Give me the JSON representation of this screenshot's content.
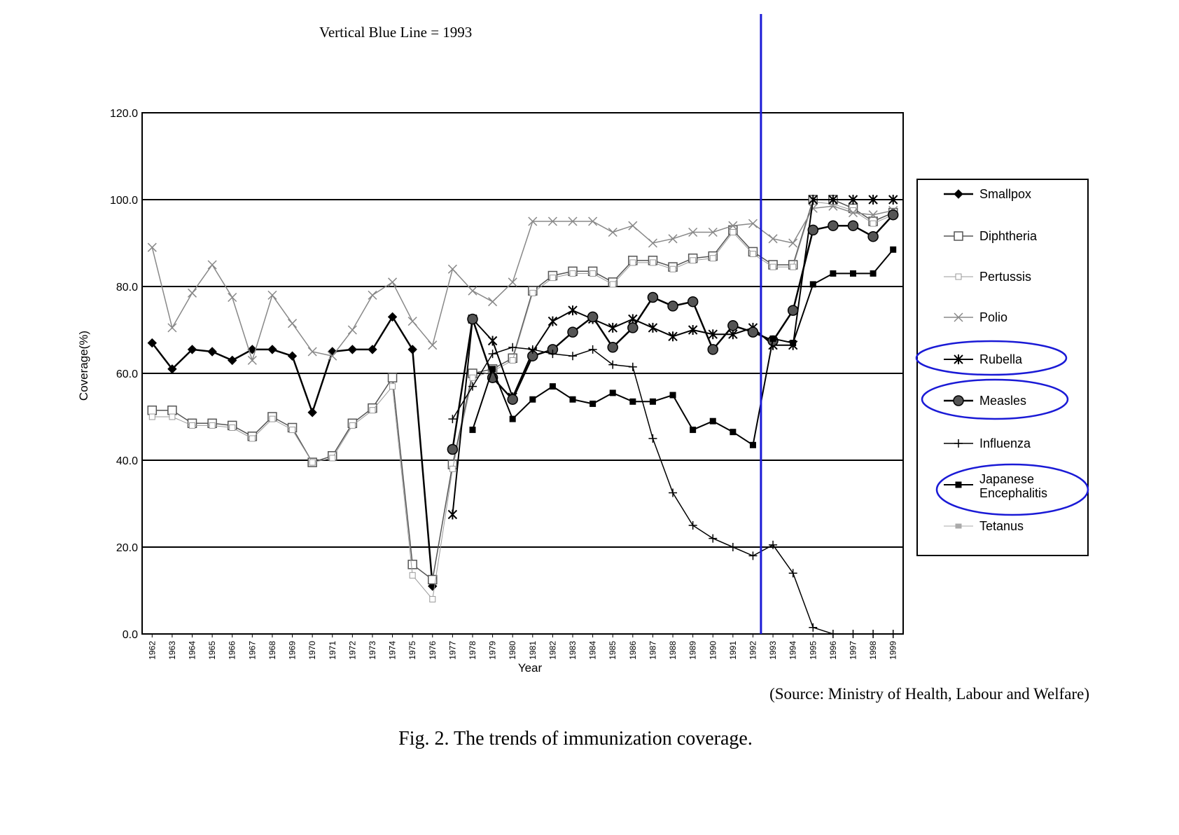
{
  "annotation": "Vertical Blue Line = 1993",
  "source": "(Source: Ministry of Health, Labour and Welfare)",
  "caption": "Fig. 2.  The trends of immunization coverage.",
  "chart_data": {
    "type": "line",
    "xlabel": "Year",
    "ylabel": "Coverage(%)",
    "ylim": [
      0,
      120
    ],
    "yticks": [
      "0.0",
      "20.0",
      "40.0",
      "60.0",
      "80.0",
      "100.0",
      "120.0"
    ],
    "categories": [
      "1962",
      "1963",
      "1964",
      "1965",
      "1966",
      "1967",
      "1968",
      "1969",
      "1970",
      "1971",
      "1972",
      "1973",
      "1974",
      "1975",
      "1976",
      "1977",
      "1978",
      "1979",
      "1980",
      "1981",
      "1982",
      "1983",
      "1984",
      "1985",
      "1986",
      "1987",
      "1988",
      "1989",
      "1990",
      "1991",
      "1992",
      "1993",
      "1994",
      "1995",
      "1996",
      "1997",
      "1998",
      "1999"
    ],
    "grid": "horizontal",
    "legend_position": "right",
    "reference_line": {
      "year": "1993",
      "color": "#1a1ad6"
    },
    "series": [
      {
        "name": "Smallpox",
        "marker": "diamond",
        "color": "#000000",
        "values": [
          67,
          61,
          65.5,
          65,
          63,
          65.5,
          65.5,
          64,
          51,
          65,
          65.5,
          65.5,
          73,
          65.5,
          11,
          null,
          null,
          null,
          null,
          null,
          null,
          null,
          null,
          null,
          null,
          null,
          null,
          null,
          null,
          null,
          null,
          null,
          null,
          null,
          null,
          null,
          null,
          null
        ]
      },
      {
        "name": "Diphtheria",
        "marker": "square-open",
        "color": "#555555",
        "values": [
          51.5,
          51.5,
          48.5,
          48.5,
          48,
          45.5,
          50,
          47.5,
          39.5,
          41,
          48.5,
          52,
          59,
          16,
          12.5,
          39,
          60,
          61,
          63.5,
          79,
          82.5,
          83.5,
          83.5,
          81,
          86,
          86,
          84.5,
          86.5,
          87,
          93,
          88,
          85,
          85,
          100,
          100,
          98,
          95,
          97
        ]
      },
      {
        "name": "Pertussis",
        "marker": "square-small",
        "color": "#999999",
        "values": [
          50,
          50,
          48,
          48,
          47.5,
          45,
          49.5,
          47,
          39.5,
          40.5,
          48,
          51.5,
          57,
          13.5,
          8,
          38,
          59,
          60.5,
          63,
          78.5,
          82,
          83,
          83,
          80.5,
          85.5,
          85.5,
          84,
          86,
          86.5,
          92.5,
          87.5,
          84.5,
          84.5,
          99.5,
          99,
          97.5,
          94.5,
          96.5
        ]
      },
      {
        "name": "Polio",
        "marker": "x",
        "color": "#888888",
        "values": [
          89,
          70.5,
          78.5,
          85,
          77.5,
          63,
          78,
          71.5,
          65,
          64,
          70,
          78,
          81,
          72,
          66.5,
          84,
          79,
          76.5,
          81,
          95,
          95,
          95,
          95,
          92.5,
          94,
          90,
          91,
          92.5,
          92.5,
          94,
          94.5,
          91,
          90,
          98,
          98.5,
          97,
          96.5,
          97.5
        ]
      },
      {
        "name": "Rubella",
        "marker": "asterisk",
        "color": "#000000",
        "values": [
          null,
          null,
          null,
          null,
          null,
          null,
          null,
          null,
          null,
          null,
          null,
          null,
          null,
          null,
          null,
          27.5,
          72.5,
          67.5,
          54.5,
          65,
          72,
          74.5,
          72.5,
          70.5,
          72.5,
          70.5,
          68.5,
          70,
          69,
          69,
          70.5,
          66.5,
          66.5,
          100,
          100,
          100,
          100,
          100
        ]
      },
      {
        "name": "Measles",
        "marker": "circle-filled",
        "color": "#000000",
        "values": [
          null,
          null,
          null,
          null,
          null,
          null,
          null,
          null,
          null,
          null,
          null,
          null,
          null,
          null,
          null,
          42.5,
          72.5,
          59,
          54,
          64,
          65.5,
          69.5,
          73,
          66,
          70.5,
          77.5,
          75.5,
          76.5,
          65.5,
          71,
          69.5,
          67.5,
          74.5,
          93,
          94,
          94,
          91.5,
          96.5
        ]
      },
      {
        "name": "Influenza",
        "marker": "plus",
        "color": "#000000",
        "values": [
          null,
          null,
          null,
          null,
          null,
          null,
          null,
          null,
          null,
          null,
          null,
          null,
          null,
          null,
          null,
          49.5,
          57,
          64.5,
          66,
          65.5,
          64.5,
          64,
          65.5,
          62,
          61.5,
          45,
          32.5,
          25,
          22,
          20,
          18,
          20.5,
          14,
          1.5,
          0,
          0,
          0,
          0
        ]
      },
      {
        "name": "Japanese Encephalitis",
        "marker": "square-filled",
        "color": "#000000",
        "values": [
          null,
          null,
          null,
          null,
          null,
          null,
          null,
          null,
          null,
          null,
          null,
          null,
          null,
          null,
          null,
          null,
          47,
          61,
          49.5,
          54,
          57,
          54,
          53,
          55.5,
          53.5,
          53.5,
          55,
          47,
          49,
          46.5,
          43.5,
          68,
          67,
          80.5,
          83,
          83,
          83,
          88.5
        ]
      },
      {
        "name": "Tetanus",
        "marker": "square-hatched",
        "color": "#aaaaaa",
        "values": [
          null,
          null,
          null,
          null,
          null,
          null,
          null,
          null,
          null,
          null,
          null,
          null,
          null,
          null,
          null,
          null,
          null,
          null,
          null,
          null,
          null,
          null,
          null,
          null,
          null,
          null,
          null,
          null,
          null,
          null,
          null,
          null,
          null,
          null,
          null,
          null,
          null,
          null
        ]
      }
    ],
    "legend_highlight": {
      "items": [
        "Rubella",
        "Measles",
        "Japanese Encephalitis"
      ],
      "color": "#1a1ad6"
    }
  }
}
